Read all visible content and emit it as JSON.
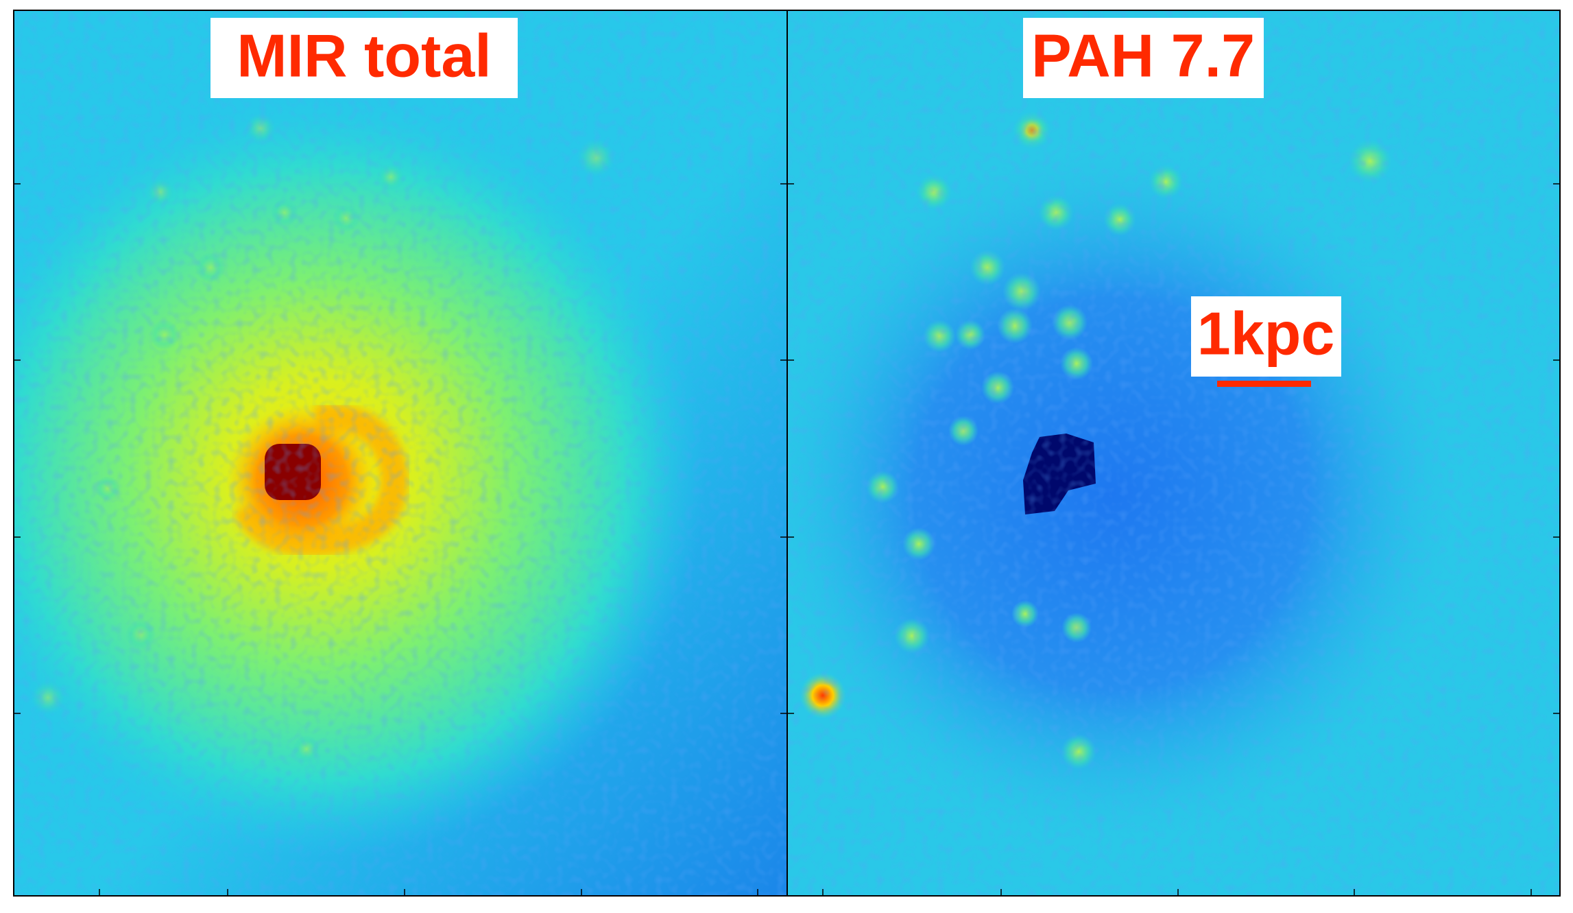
{
  "panels": [
    {
      "label": "MIR total"
    },
    {
      "label": "PAH 7.7"
    }
  ],
  "scale_bar": {
    "label": "1kpc"
  }
}
